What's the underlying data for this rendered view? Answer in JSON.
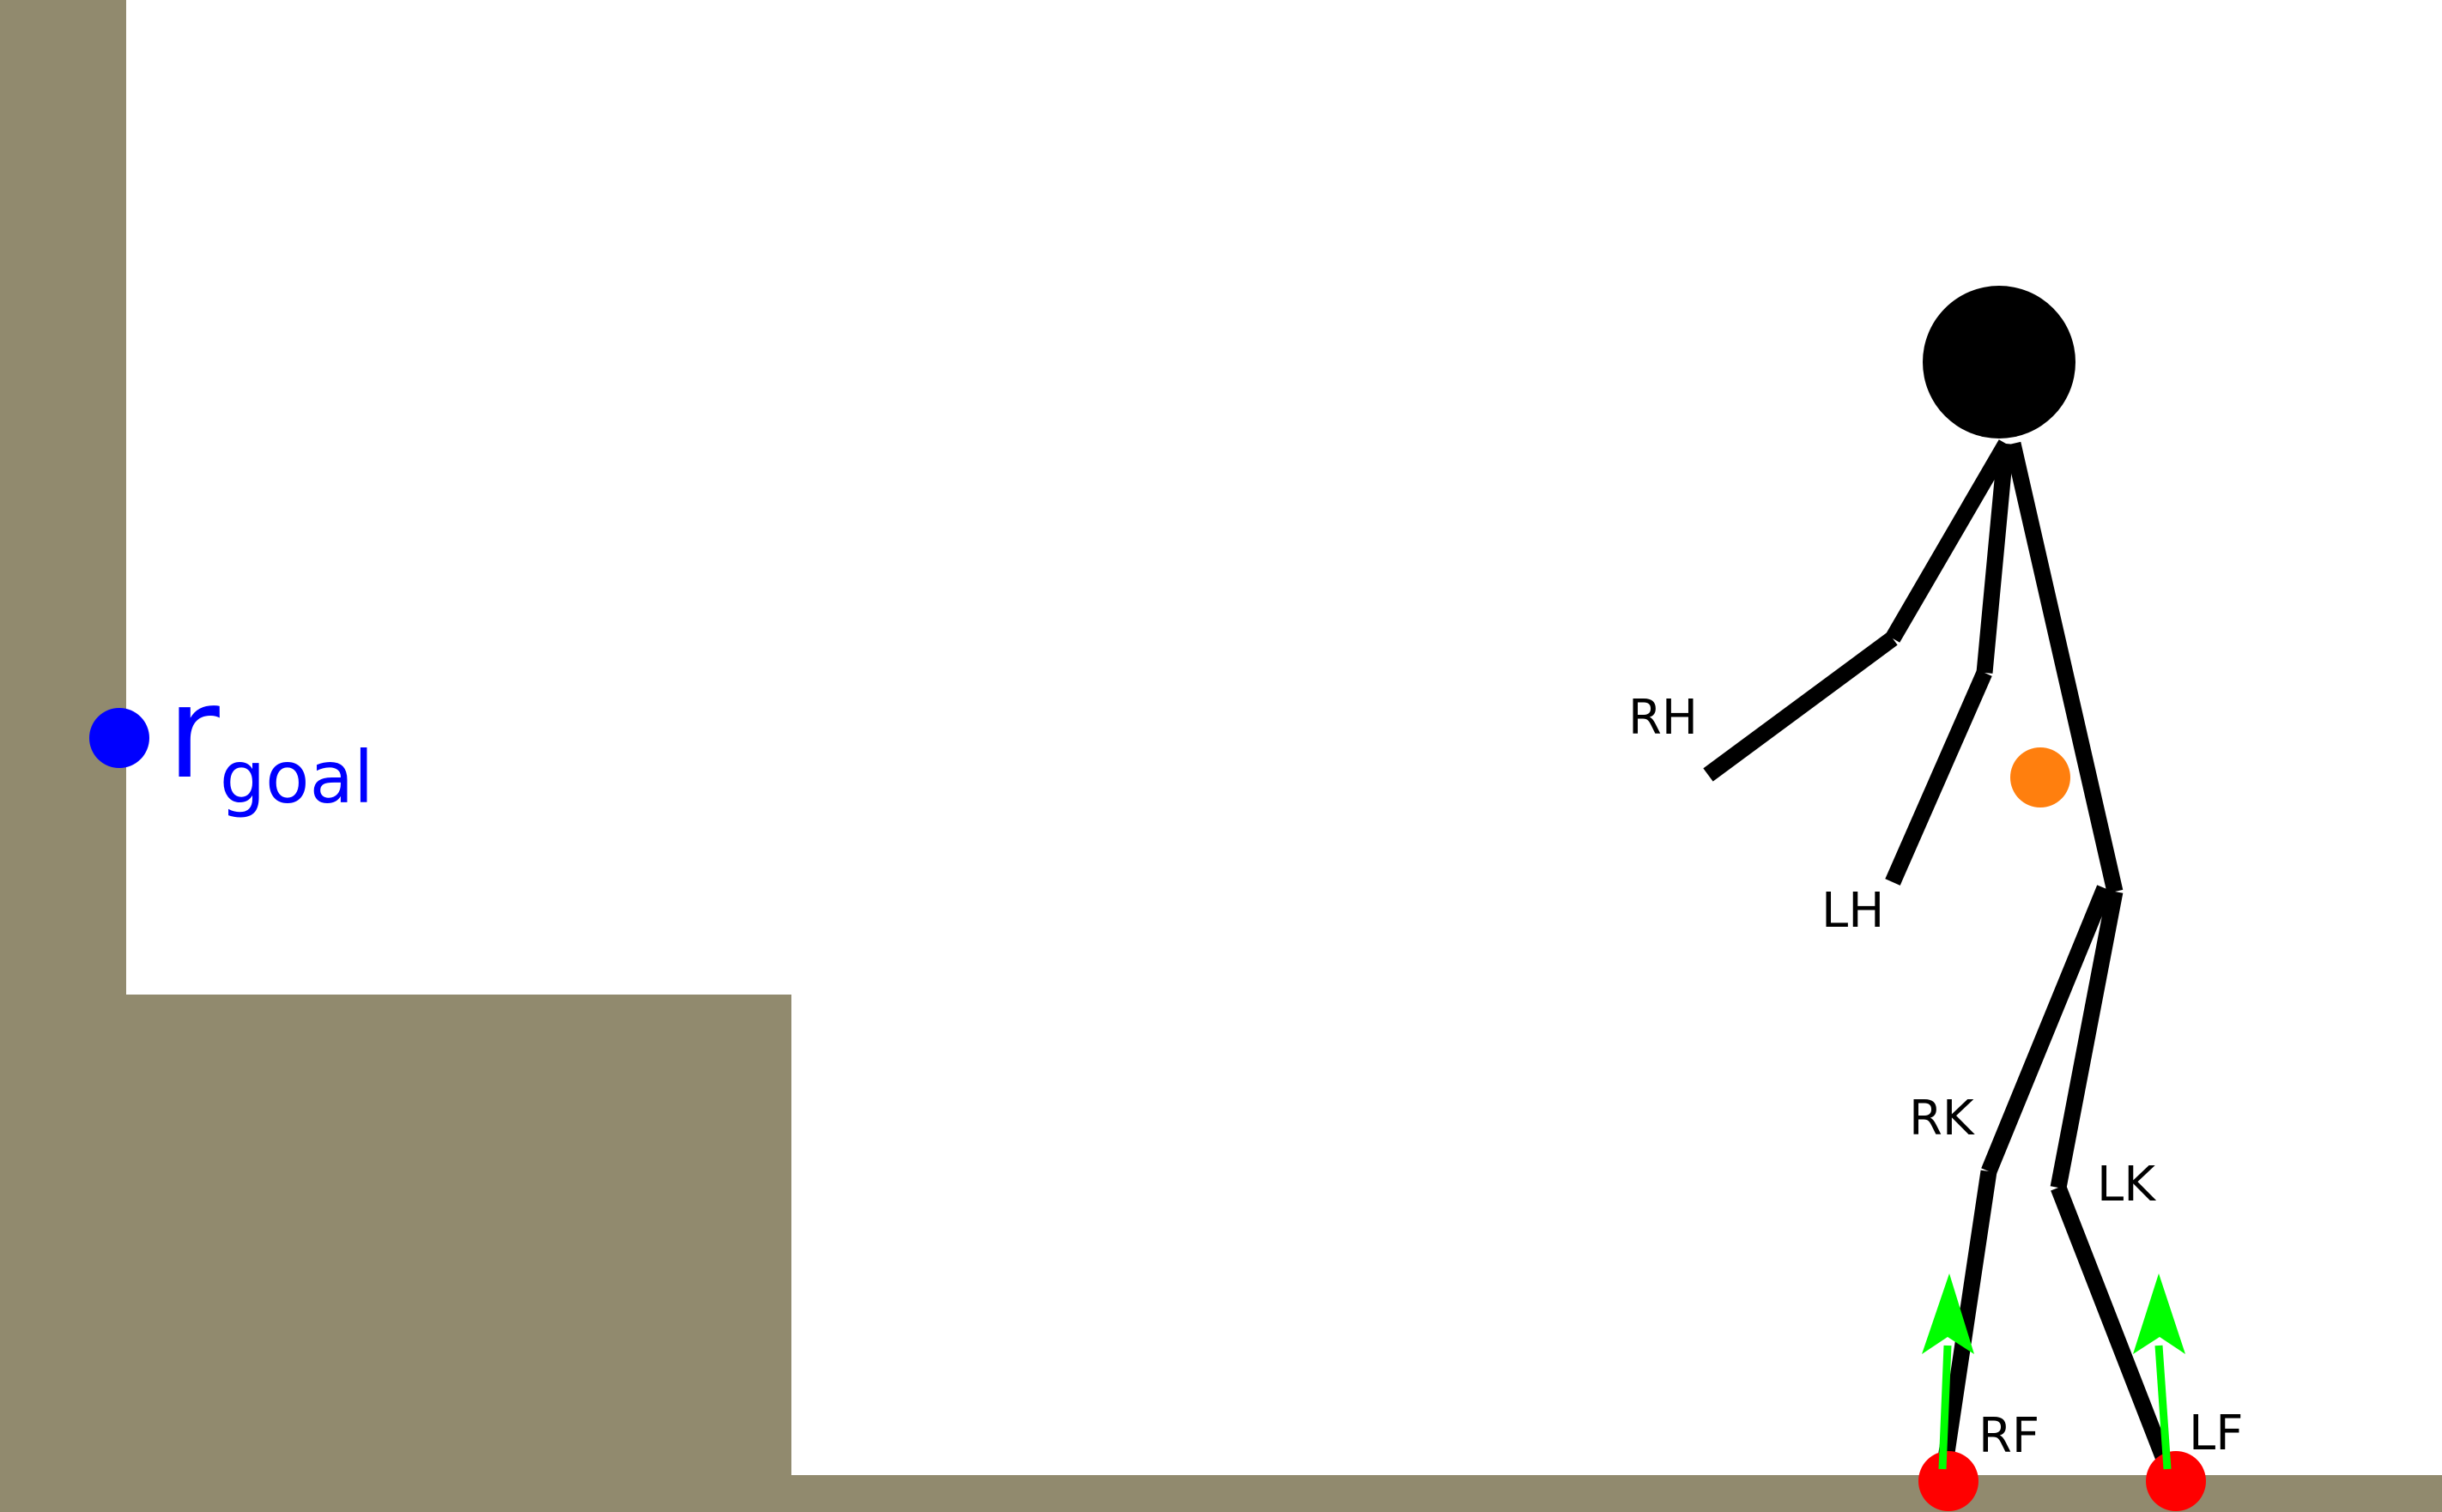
{
  "colors": {
    "terrain": "#918a6e",
    "figure": "#000000",
    "goal": "#0000ff",
    "center_of_mass": "#ff7f0e",
    "contact": "#ff0000",
    "force": "#00ff00"
  },
  "goal": {
    "symbol": "r",
    "subscript": "goal"
  },
  "joint_labels": {
    "right_hand": "RH",
    "left_hand": "LH",
    "right_knee": "RK",
    "left_knee": "LK",
    "right_foot": "RF",
    "left_foot": "LF"
  }
}
